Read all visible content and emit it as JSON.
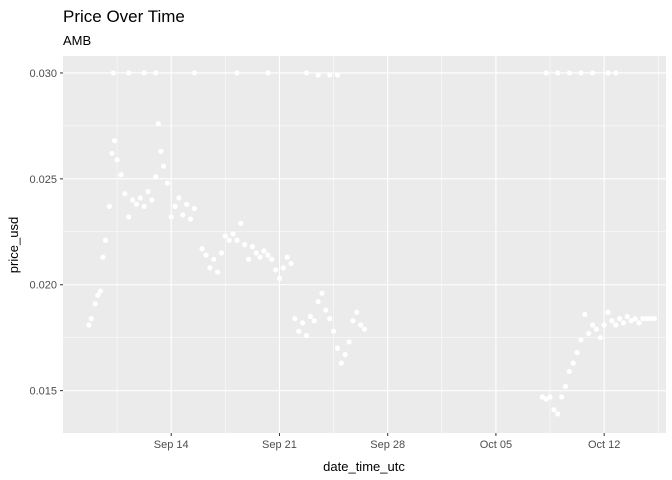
{
  "chart_data": {
    "type": "scatter",
    "title": "Price Over Time",
    "subtitle": "AMB",
    "xlabel": "date_time_utc",
    "ylabel": "price_usd",
    "x_tick_labels": [
      "Sep 14",
      "Sep 21",
      "Sep 28",
      "Oct 05",
      "Oct 12"
    ],
    "x_tick_dates": [
      "2018-09-14",
      "2018-09-21",
      "2018-09-28",
      "2018-10-05",
      "2018-10-12"
    ],
    "y_tick_labels": [
      "0.015",
      "0.020",
      "0.025",
      "0.030"
    ],
    "y_ticks": [
      0.015,
      0.02,
      0.025,
      0.03
    ],
    "xlim": [
      "2018-09-07",
      "2018-10-16"
    ],
    "ylim": [
      0.013,
      0.0308
    ],
    "grid": true,
    "colors": {
      "panel": "#ebebeb",
      "grid": "#ffffff",
      "points": "#ffffff"
    },
    "series": [
      {
        "points": [
          [
            "2018-09-08 16:00",
            0.0181
          ],
          [
            "2018-09-08 20:00",
            0.0184
          ],
          [
            "2018-09-09 02:00",
            0.0191
          ],
          [
            "2018-09-09 06:00",
            0.0195
          ],
          [
            "2018-09-09 10:00",
            0.0197
          ],
          [
            "2018-09-09 14:00",
            0.0213
          ],
          [
            "2018-09-09 18:00",
            0.0221
          ],
          [
            "2018-09-10 00:00",
            0.0237
          ],
          [
            "2018-09-10 04:00",
            0.0262
          ],
          [
            "2018-09-10 08:00",
            0.0268
          ],
          [
            "2018-09-10 12:00",
            0.0259
          ],
          [
            "2018-09-10 18:00",
            0.0252
          ],
          [
            "2018-09-11 00:00",
            0.0243
          ],
          [
            "2018-09-11 06:00",
            0.0232
          ],
          [
            "2018-09-11 12:00",
            0.024
          ],
          [
            "2018-09-11 18:00",
            0.0238
          ],
          [
            "2018-09-12 00:00",
            0.0241
          ],
          [
            "2018-09-12 06:00",
            0.0237
          ],
          [
            "2018-09-12 12:00",
            0.0244
          ],
          [
            "2018-09-12 18:00",
            0.024
          ],
          [
            "2018-09-13 00:00",
            0.0251
          ],
          [
            "2018-09-13 04:00",
            0.0276
          ],
          [
            "2018-09-13 08:00",
            0.0263
          ],
          [
            "2018-09-13 12:00",
            0.0256
          ],
          [
            "2018-09-13 18:00",
            0.0248
          ],
          [
            "2018-09-14 00:00",
            0.0232
          ],
          [
            "2018-09-14 06:00",
            0.0237
          ],
          [
            "2018-09-14 12:00",
            0.0241
          ],
          [
            "2018-09-14 18:00",
            0.0233
          ],
          [
            "2018-09-15 00:00",
            0.0238
          ],
          [
            "2018-09-15 06:00",
            0.0231
          ],
          [
            "2018-09-15 12:00",
            0.0236
          ],
          [
            "2018-09-16 00:00",
            0.0217
          ],
          [
            "2018-09-16 06:00",
            0.0214
          ],
          [
            "2018-09-16 12:00",
            0.0208
          ],
          [
            "2018-09-16 18:00",
            0.0212
          ],
          [
            "2018-09-17 00:00",
            0.0206
          ],
          [
            "2018-09-17 06:00",
            0.0215
          ],
          [
            "2018-09-17 12:00",
            0.0223
          ],
          [
            "2018-09-17 18:00",
            0.0221
          ],
          [
            "2018-09-18 00:00",
            0.0224
          ],
          [
            "2018-09-18 06:00",
            0.0221
          ],
          [
            "2018-09-18 12:00",
            0.0229
          ],
          [
            "2018-09-18 18:00",
            0.0219
          ],
          [
            "2018-09-19 00:00",
            0.0212
          ],
          [
            "2018-09-19 06:00",
            0.0218
          ],
          [
            "2018-09-19 12:00",
            0.0215
          ],
          [
            "2018-09-19 18:00",
            0.0213
          ],
          [
            "2018-09-20 00:00",
            0.0216
          ],
          [
            "2018-09-20 06:00",
            0.0214
          ],
          [
            "2018-09-20 12:00",
            0.0212
          ],
          [
            "2018-09-20 18:00",
            0.0207
          ],
          [
            "2018-09-21 00:00",
            0.0203
          ],
          [
            "2018-09-21 06:00",
            0.0208
          ],
          [
            "2018-09-21 12:00",
            0.0213
          ],
          [
            "2018-09-21 18:00",
            0.021
          ],
          [
            "2018-09-22 00:00",
            0.0184
          ],
          [
            "2018-09-22 06:00",
            0.0178
          ],
          [
            "2018-09-22 12:00",
            0.0182
          ],
          [
            "2018-09-22 18:00",
            0.0176
          ],
          [
            "2018-09-23 00:00",
            0.0185
          ],
          [
            "2018-09-23 06:00",
            0.0183
          ],
          [
            "2018-09-23 12:00",
            0.0192
          ],
          [
            "2018-09-23 18:00",
            0.0196
          ],
          [
            "2018-09-24 00:00",
            0.0188
          ],
          [
            "2018-09-24 06:00",
            0.0184
          ],
          [
            "2018-09-24 12:00",
            0.0178
          ],
          [
            "2018-09-24 18:00",
            0.017
          ],
          [
            "2018-09-25 00:00",
            0.0163
          ],
          [
            "2018-09-25 06:00",
            0.0167
          ],
          [
            "2018-09-25 12:00",
            0.0173
          ],
          [
            "2018-09-25 18:00",
            0.0183
          ],
          [
            "2018-09-26 00:00",
            0.0187
          ],
          [
            "2018-09-26 06:00",
            0.0181
          ],
          [
            "2018-09-26 12:00",
            0.0179
          ],
          [
            "2018-09-10 06:00",
            0.03
          ],
          [
            "2018-09-11 06:00",
            0.03
          ],
          [
            "2018-09-12 06:00",
            0.03
          ],
          [
            "2018-09-13 00:00",
            0.03
          ],
          [
            "2018-09-15 12:00",
            0.03
          ],
          [
            "2018-09-18 06:00",
            0.03
          ],
          [
            "2018-09-20 06:00",
            0.03
          ],
          [
            "2018-09-22 18:00",
            0.03
          ],
          [
            "2018-09-23 12:00",
            0.0299
          ],
          [
            "2018-09-24 06:00",
            0.0299
          ],
          [
            "2018-09-24 18:00",
            0.0299
          ],
          [
            "2018-10-08 00:00",
            0.0147
          ],
          [
            "2018-10-08 06:00",
            0.0146
          ],
          [
            "2018-10-08 12:00",
            0.0147
          ],
          [
            "2018-10-08 18:00",
            0.0141
          ],
          [
            "2018-10-09 00:00",
            0.0139
          ],
          [
            "2018-10-09 06:00",
            0.0147
          ],
          [
            "2018-10-09 12:00",
            0.0152
          ],
          [
            "2018-10-09 18:00",
            0.0159
          ],
          [
            "2018-10-10 00:00",
            0.0163
          ],
          [
            "2018-10-10 06:00",
            0.0168
          ],
          [
            "2018-10-10 12:00",
            0.0174
          ],
          [
            "2018-10-10 18:00",
            0.0186
          ],
          [
            "2018-10-11 00:00",
            0.0177
          ],
          [
            "2018-10-11 06:00",
            0.0181
          ],
          [
            "2018-10-11 12:00",
            0.0179
          ],
          [
            "2018-10-11 18:00",
            0.0175
          ],
          [
            "2018-10-12 00:00",
            0.0181
          ],
          [
            "2018-10-12 06:00",
            0.0187
          ],
          [
            "2018-10-12 12:00",
            0.0183
          ],
          [
            "2018-10-12 18:00",
            0.0181
          ],
          [
            "2018-10-13 00:00",
            0.0184
          ],
          [
            "2018-10-13 06:00",
            0.0182
          ],
          [
            "2018-10-13 12:00",
            0.0185
          ],
          [
            "2018-10-13 18:00",
            0.0183
          ],
          [
            "2018-10-14 00:00",
            0.0184
          ],
          [
            "2018-10-14 06:00",
            0.0182
          ],
          [
            "2018-10-14 12:00",
            0.0184
          ],
          [
            "2018-10-14 18:00",
            0.0184
          ],
          [
            "2018-10-15 00:00",
            0.0184
          ],
          [
            "2018-10-15 06:00",
            0.0184
          ],
          [
            "2018-10-08 06:00",
            0.03
          ],
          [
            "2018-10-09 00:00",
            0.03
          ],
          [
            "2018-10-09 18:00",
            0.03
          ],
          [
            "2018-10-10 12:00",
            0.03
          ],
          [
            "2018-10-11 06:00",
            0.03
          ],
          [
            "2018-10-12 06:00",
            0.03
          ],
          [
            "2018-10-12 18:00",
            0.03
          ]
        ]
      }
    ]
  }
}
